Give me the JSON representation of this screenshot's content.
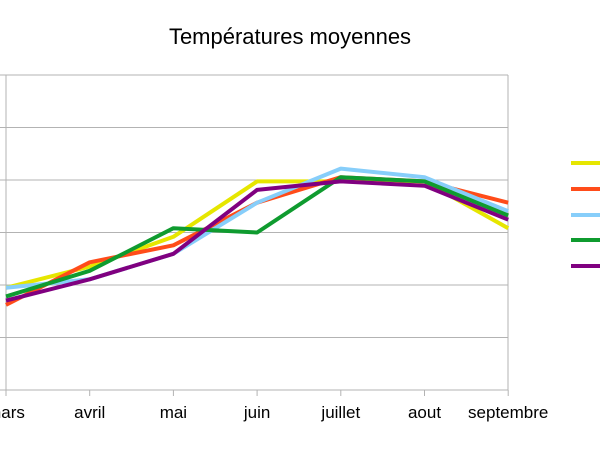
{
  "chart_data": {
    "type": "line",
    "title": "Températures moyennes",
    "categories": [
      "mars",
      "avril",
      "mai",
      "juin",
      "juillet",
      "aout",
      "septembre"
    ],
    "ylim": [
      0,
      7.4
    ],
    "grid": true,
    "legend_position": "right",
    "series": [
      {
        "color": "#e6e600",
        "values": [
          2.4,
          2.9,
          3.6,
          4.9,
          4.9,
          4.9,
          3.8
        ]
      },
      {
        "color": "#ff4c1a",
        "values": [
          2.0,
          3.0,
          3.4,
          4.4,
          5.0,
          4.9,
          4.4
        ]
      },
      {
        "color": "#87cefa",
        "values": [
          2.4,
          2.6,
          3.2,
          4.4,
          5.2,
          5.0,
          4.2
        ]
      },
      {
        "color": "#0f9b2f",
        "values": [
          2.2,
          2.8,
          3.8,
          3.7,
          5.0,
          4.9,
          4.1
        ]
      },
      {
        "color": "#800080",
        "values": [
          2.1,
          2.6,
          3.2,
          4.7,
          4.9,
          4.8,
          4.0
        ]
      }
    ]
  }
}
